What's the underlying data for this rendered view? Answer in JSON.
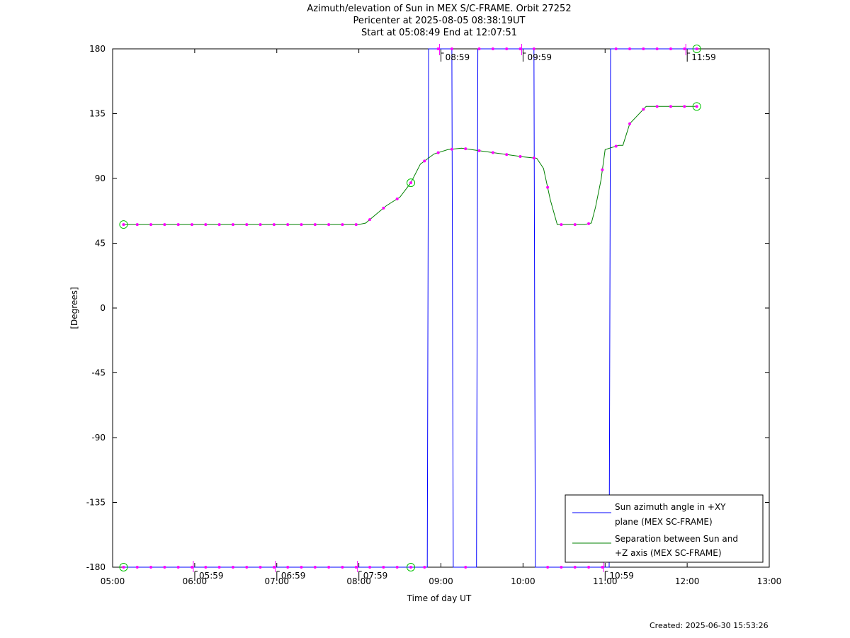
{
  "chart_data": {
    "type": "line",
    "title": "Azimuth/elevation of Sun in MEX S/C-FRAME.  Orbit 27252",
    "subtitle_lines": [
      "Pericenter at 2025-08-05 08:38:19UT",
      "Start at 05:08:49 End at 12:07:51"
    ],
    "xlabel": "Time of day UT",
    "ylabel": "[Degrees]",
    "xlim_hours": [
      5,
      13
    ],
    "ylim": [
      -180,
      180
    ],
    "x_ticks": [
      {
        "h": 5,
        "label": "05:00"
      },
      {
        "h": 6,
        "label": "06:00"
      },
      {
        "h": 7,
        "label": "07:00"
      },
      {
        "h": 8,
        "label": "08:00"
      },
      {
        "h": 9,
        "label": "09:00"
      },
      {
        "h": 10,
        "label": "10:00"
      },
      {
        "h": 11,
        "label": "11:00"
      },
      {
        "h": 12,
        "label": "12:00"
      },
      {
        "h": 13,
        "label": "13:00"
      }
    ],
    "y_ticks": [
      180,
      135,
      90,
      45,
      0,
      -45,
      -90,
      -135,
      -180
    ],
    "grid": false,
    "legend_position": "bottom-right",
    "series": [
      {
        "name": "Sun azimuth angle in +XY plane (MEX SC-FRAME)",
        "legend_lines": [
          "Sun azimuth angle in +XY",
          "plane (MEX SC-FRAME)"
        ],
        "color": "#0000ff",
        "x": [
          "05:08",
          "08:50",
          "08:51",
          "09:08",
          "09:09",
          "09:26",
          "09:27",
          "10:08",
          "10:09",
          "11:03",
          "11:04",
          "12:07"
        ],
        "y": [
          -180,
          -180,
          180,
          180,
          -180,
          -180,
          180,
          180,
          -180,
          -180,
          180,
          180
        ]
      },
      {
        "name": "Separation between Sun and +Z axis (MEX SC-FRAME)",
        "legend_lines": [
          "Separation between Sun and",
          "+Z axis (MEX SC-FRAME)"
        ],
        "color": "#008000",
        "x": [
          "05:08",
          "08:00",
          "08:05",
          "08:10",
          "08:20",
          "08:30",
          "08:38",
          "08:45",
          "08:55",
          "09:05",
          "09:15",
          "09:30",
          "09:45",
          "10:00",
          "10:10",
          "10:15",
          "10:20",
          "10:25",
          "10:30",
          "10:45",
          "10:50",
          "10:53",
          "10:57",
          "11:00",
          "11:10",
          "11:13",
          "11:18",
          "11:30",
          "11:45",
          "12:07"
        ],
        "y": [
          58,
          58,
          59,
          63,
          71,
          77,
          87,
          100,
          107,
          110,
          111,
          109,
          107,
          105,
          104,
          97,
          75,
          58,
          58,
          58,
          59,
          70,
          89,
          110,
          113,
          113,
          128,
          140,
          140,
          140
        ]
      }
    ],
    "sample_markers_x": [
      "05:08",
      "05:18",
      "05:28",
      "05:38",
      "05:48",
      "05:58",
      "06:08",
      "06:18",
      "06:28",
      "06:38",
      "06:48",
      "06:58",
      "07:08",
      "07:18",
      "07:28",
      "07:38",
      "07:48",
      "07:58",
      "08:08",
      "08:18",
      "08:28",
      "08:38",
      "08:48",
      "08:58",
      "09:08",
      "09:18",
      "09:28",
      "09:38",
      "09:48",
      "09:58",
      "10:08",
      "10:18",
      "10:28",
      "10:38",
      "10:48",
      "10:58",
      "11:08",
      "11:18",
      "11:28",
      "11:38",
      "11:48",
      "11:58",
      "12:07"
    ],
    "endpoint_circles": [
      {
        "x": "05:08",
        "series": 0
      },
      {
        "x": "05:08",
        "series": 1
      },
      {
        "x": "08:38",
        "series": 0
      },
      {
        "x": "08:38",
        "series": 1
      },
      {
        "x": "12:07",
        "series": 0
      },
      {
        "x": "12:07",
        "series": 1
      }
    ],
    "hour_ticks": [
      {
        "x": "05:59",
        "label": "05:59",
        "level": "bottom"
      },
      {
        "x": "06:59",
        "label": "06:59",
        "level": "bottom"
      },
      {
        "x": "07:59",
        "label": "07:59",
        "level": "bottom"
      },
      {
        "x": "08:59",
        "label": "08:59",
        "level": "top"
      },
      {
        "x": "09:59",
        "label": "09:59",
        "level": "top"
      },
      {
        "x": "10:59",
        "label": "10:59",
        "level": "bottom"
      },
      {
        "x": "11:59",
        "label": "11:59",
        "level": "top"
      }
    ],
    "colors": {
      "azimuth": "#0000ff",
      "separation": "#008000",
      "markers": "#ff00ff",
      "circles": "#00c000"
    }
  },
  "footer": {
    "created": "Created: 2025-06-30 15:53:26"
  }
}
